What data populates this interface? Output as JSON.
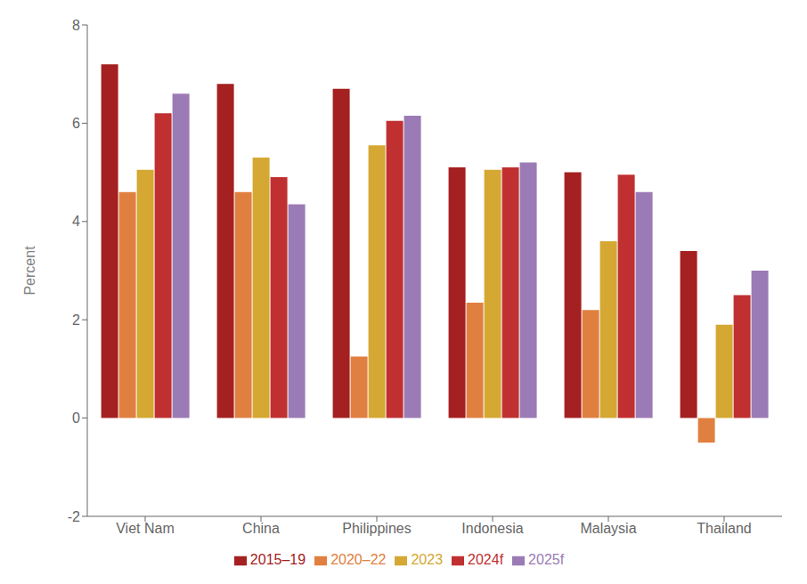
{
  "chart_data": {
    "type": "bar",
    "ylabel": "Percent",
    "categories": [
      "Viet Nam",
      "China",
      "Philippines",
      "Indonesia",
      "Malaysia",
      "Thailand"
    ],
    "series": [
      {
        "name": "2015–19",
        "color": "#A52020",
        "values": [
          7.2,
          6.8,
          6.7,
          5.1,
          5.0,
          3.4
        ]
      },
      {
        "name": "2020–22",
        "color": "#E08040",
        "values": [
          4.6,
          4.6,
          1.25,
          2.35,
          2.2,
          -0.5
        ]
      },
      {
        "name": "2023",
        "color": "#D4A832",
        "values": [
          5.05,
          5.3,
          5.55,
          5.05,
          3.6,
          1.9
        ]
      },
      {
        "name": "2024f",
        "color": "#C03030",
        "values": [
          6.2,
          4.9,
          6.05,
          5.1,
          4.95,
          2.5
        ]
      },
      {
        "name": "2025f",
        "color": "#9B7BB5",
        "values": [
          6.6,
          4.35,
          6.15,
          5.2,
          4.6,
          3.0
        ]
      }
    ],
    "ylim": [
      -2,
      8
    ],
    "yticks": [
      -2,
      0,
      2,
      4,
      6,
      8
    ],
    "grid": false,
    "legend": "bottom"
  }
}
